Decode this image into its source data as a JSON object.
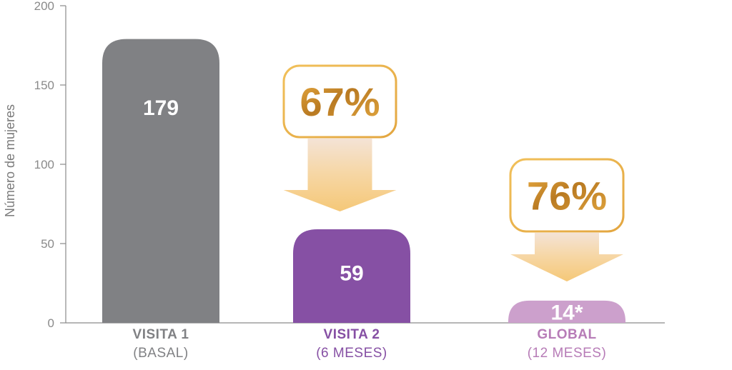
{
  "chart_data": {
    "type": "bar",
    "ylabel": "Número de mujeres",
    "ylim": [
      0,
      200
    ],
    "yticks": [
      0,
      50,
      100,
      150,
      200
    ],
    "grid": false,
    "categories": [
      {
        "title": "VISITA 1",
        "subtitle": "(BASAL)"
      },
      {
        "title": "VISITA 2",
        "subtitle": "(6 MESES)"
      },
      {
        "title": "GLOBAL",
        "subtitle": "(12 MESES)"
      }
    ],
    "values": [
      179,
      59,
      14
    ],
    "value_labels": [
      "179",
      "59",
      "14*"
    ],
    "reductions": [
      "67%",
      "76%"
    ],
    "colors": {
      "bars": [
        "#808184",
        "#8650A4",
        "#CCA0CC"
      ],
      "titles": [
        "#808184",
        "#8650A4",
        "#B77CB7"
      ],
      "value_text_small": "#8650A4",
      "gold_dark": "#C98F2E",
      "gold_light": "#F7D99A",
      "axis": "#8a8a8a"
    }
  }
}
